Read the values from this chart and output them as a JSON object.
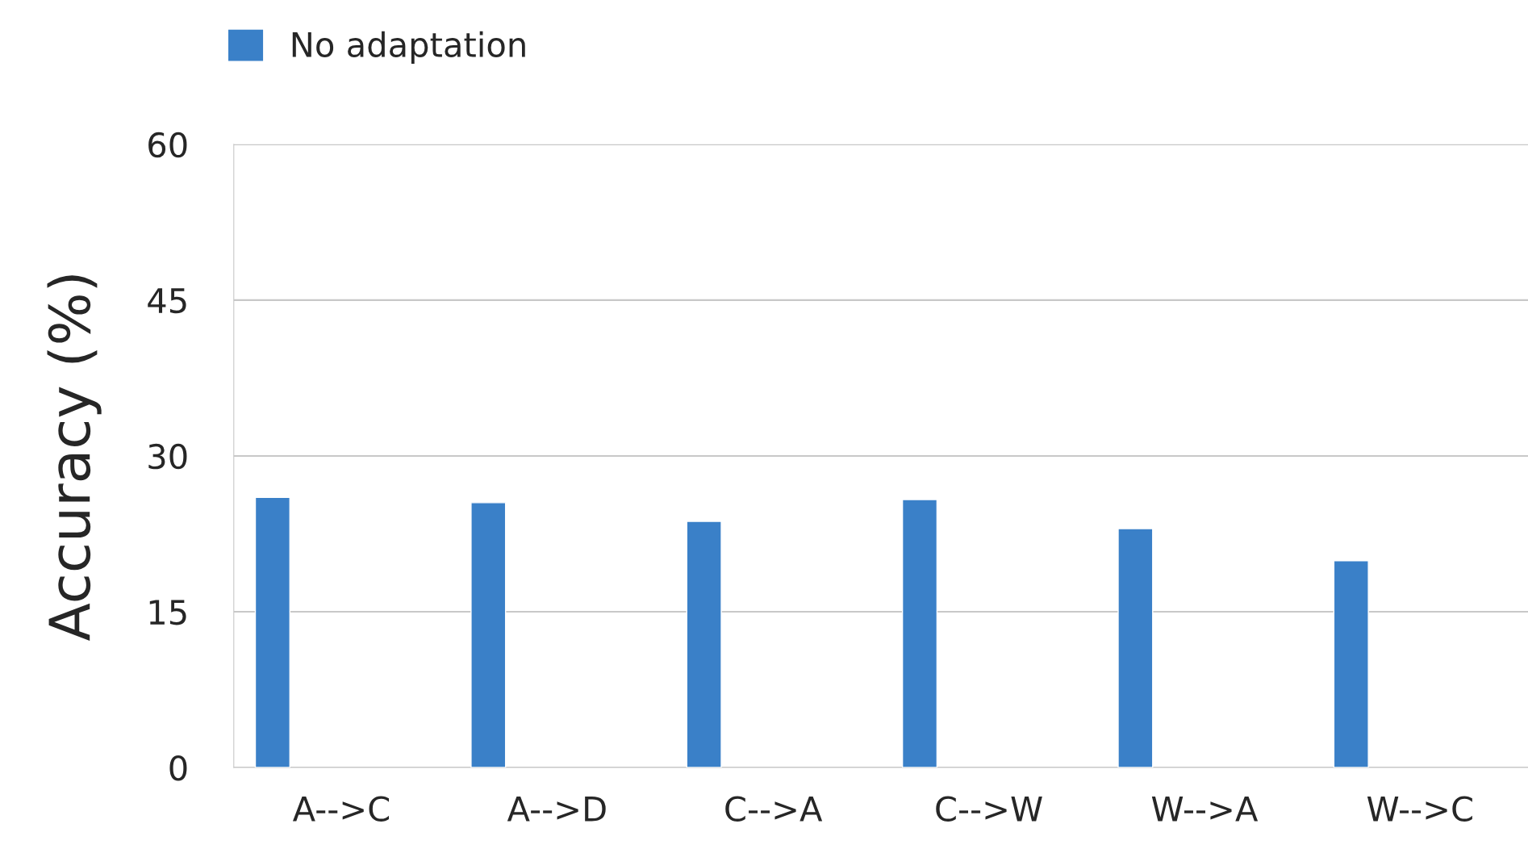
{
  "chart_data": {
    "type": "bar",
    "ylabel": "Accuracy (%)",
    "categories": [
      "A-->C",
      "A-->D",
      "C-->A",
      "C-->W",
      "W-->A",
      "W-->C"
    ],
    "series": [
      {
        "name": "No adaptation",
        "color": "#3a80c8",
        "values": [
          26.0,
          25.5,
          23.7,
          25.8,
          23.0,
          19.9
        ]
      }
    ],
    "ylim": [
      0,
      60
    ],
    "yticks": [
      0,
      15,
      30,
      45,
      60
    ],
    "grid": "y",
    "legend": "top left"
  }
}
